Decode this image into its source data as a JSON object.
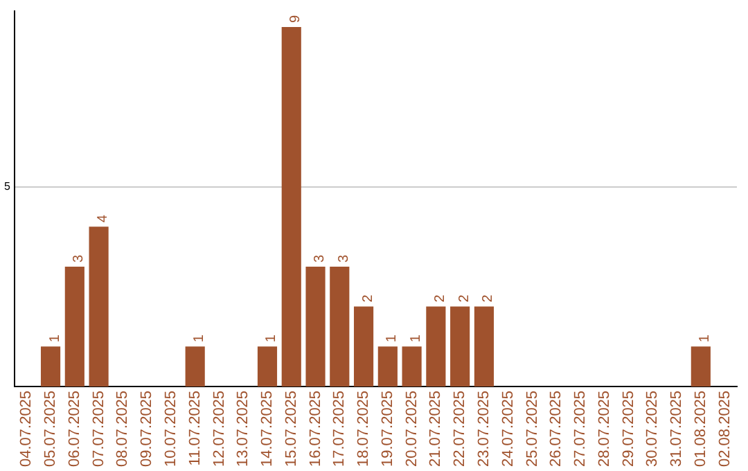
{
  "chart_data": {
    "type": "bar",
    "categories": [
      "04.07.2025",
      "05.07.2025",
      "06.07.2025",
      "07.07.2025",
      "08.07.2025",
      "09.07.2025",
      "10.07.2025",
      "11.07.2025",
      "12.07.2025",
      "13.07.2025",
      "14.07.2025",
      "15.07.2025",
      "16.07.2025",
      "17.07.2025",
      "18.07.2025",
      "19.07.2025",
      "20.07.2025",
      "21.07.2025",
      "22.07.2025",
      "23.07.2025",
      "24.07.2025",
      "25.07.2025",
      "26.07.2025",
      "27.07.2025",
      "28.07.2025",
      "29.07.2025",
      "30.07.2025",
      "31.07.2025",
      "01.08.2025",
      "02.08.2025"
    ],
    "values": [
      0,
      1,
      3,
      4,
      0,
      0,
      0,
      1,
      0,
      0,
      1,
      9,
      3,
      3,
      2,
      1,
      1,
      2,
      2,
      2,
      0,
      0,
      0,
      0,
      0,
      0,
      0,
      0,
      1,
      0
    ],
    "value_labels": [
      null,
      "1",
      "3",
      "4",
      null,
      null,
      null,
      "1",
      null,
      null,
      "1",
      "9",
      "3",
      "3",
      "2",
      "1",
      "1",
      "2",
      "2",
      "2",
      null,
      null,
      null,
      null,
      null,
      null,
      null,
      null,
      "1",
      null
    ],
    "color": "#a0522d",
    "ylim": [
      0,
      9.4
    ],
    "yticks": [
      5
    ],
    "grid": "y",
    "legend": false
  }
}
